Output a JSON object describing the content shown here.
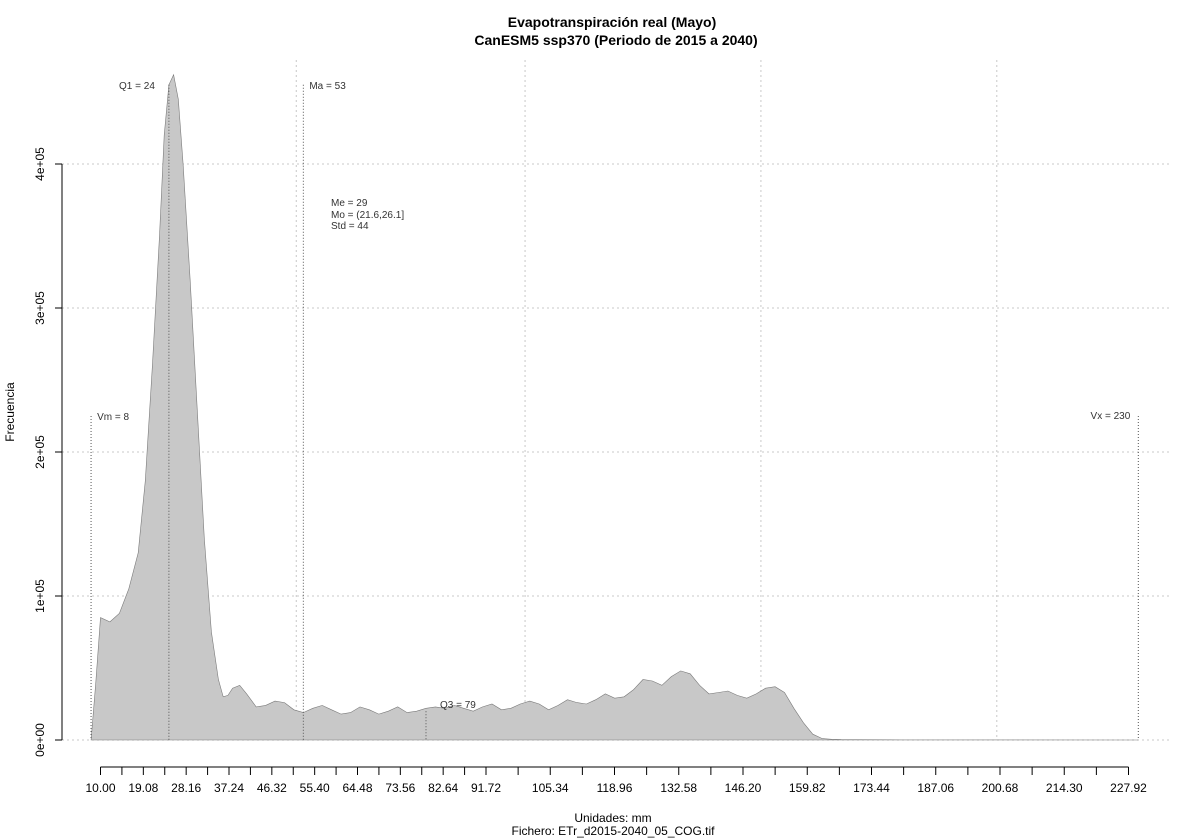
{
  "chart_data": {
    "type": "area",
    "title": "Evapotranspiración real (Mayo)",
    "subtitle": "CanESM5 ssp370 (Periodo de 2015 a 2040)",
    "xlabel": "Unidades: mm",
    "ylabel": "Frecuencia",
    "footer": "Fichero: ETr_d2015-2040_05_COG.tif",
    "xlim": [
      0,
      237.5
    ],
    "ylim": [
      0,
      460000
    ],
    "grid": true,
    "x_ticks": [
      10.0,
      19.08,
      28.16,
      37.24,
      46.32,
      55.4,
      64.48,
      73.56,
      82.64,
      91.72,
      105.34,
      118.96,
      132.58,
      146.2,
      159.82,
      173.44,
      187.06,
      200.68,
      214.3,
      227.92
    ],
    "x_tick_labels": [
      "10.00",
      "19.08",
      "28.16",
      "37.24",
      "46.32",
      "55.40",
      "64.48",
      "73.56",
      "82.64",
      "91.72",
      "105.34",
      "118.96",
      "132.58",
      "146.20",
      "159.82",
      "173.44",
      "187.06",
      "200.68",
      "214.30",
      "227.92"
    ],
    "y_ticks": [
      0,
      100000,
      200000,
      300000,
      400000
    ],
    "y_tick_labels": [
      "0e+00",
      "1e+05",
      "2e+05",
      "3e+05",
      "4e+05"
    ],
    "grid_x": [
      51.5,
      100,
      150,
      200
    ],
    "x": [
      8,
      9,
      10,
      12,
      14,
      16,
      18,
      19.5,
      21,
      22.5,
      23.5,
      24.5,
      25.5,
      26.5,
      27.5,
      29,
      30.5,
      32,
      33.5,
      35,
      36,
      37,
      38,
      39.5,
      41,
      43,
      45,
      47,
      49,
      51,
      53,
      55,
      57,
      59,
      61,
      63,
      65,
      67,
      69,
      71,
      73,
      75,
      77,
      79,
      81,
      83,
      85,
      87,
      89,
      91,
      93,
      95,
      97,
      99,
      101,
      103,
      105,
      107,
      109,
      111,
      113,
      115,
      117,
      119,
      121,
      123,
      125,
      127,
      129,
      131,
      133,
      135,
      137,
      139,
      141,
      143,
      145,
      147,
      149,
      151,
      153,
      155,
      157,
      159,
      161,
      163,
      165,
      167,
      170,
      180,
      200,
      230
    ],
    "y": [
      0,
      40000,
      85000,
      82000,
      88000,
      105000,
      130000,
      180000,
      260000,
      350000,
      420000,
      455000,
      462000,
      445000,
      400000,
      320000,
      230000,
      140000,
      75000,
      42000,
      30000,
      31000,
      36000,
      38000,
      32000,
      23000,
      24000,
      27000,
      26000,
      21000,
      19000,
      22000,
      24000,
      21000,
      18000,
      19000,
      23000,
      21000,
      18000,
      20000,
      23000,
      19000,
      20000,
      22000,
      23000,
      22000,
      24000,
      22000,
      20000,
      23000,
      25000,
      21000,
      22000,
      25000,
      27000,
      25000,
      21000,
      24000,
      28000,
      26000,
      25000,
      28000,
      32000,
      29000,
      30000,
      35000,
      42000,
      41000,
      38000,
      44000,
      48000,
      46000,
      38000,
      32000,
      33000,
      34000,
      31000,
      29000,
      32000,
      36000,
      37000,
      33000,
      22000,
      12000,
      4000,
      1000,
      500,
      300,
      200,
      100,
      50,
      0
    ],
    "markers": [
      {
        "label": "Vm = 8",
        "x": 8,
        "top": 225000
      },
      {
        "label": "Q1 = 24",
        "x": 24.5,
        "top": 455000
      },
      {
        "label": "Ma = 53",
        "x": 53,
        "top": 455000
      },
      {
        "label": "Q3 = 79",
        "x": 79,
        "top": 20000
      },
      {
        "label": "Vx = 230",
        "x": 230,
        "top": 225000
      }
    ],
    "stats_text": [
      "Me = 29",
      "Mo = (21.6,26.1]",
      "Std = 44"
    ],
    "colors": {
      "fill": "#c8c8c8",
      "stroke": "#7a7a7a",
      "grid": "#c8c8c8",
      "marker": "#555555"
    }
  }
}
